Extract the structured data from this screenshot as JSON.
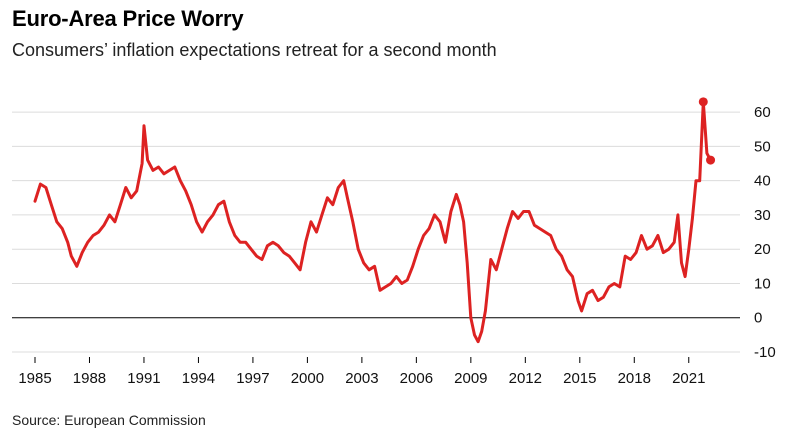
{
  "title": "Euro-Area Price Worry",
  "subtitle": "Consumers’ inflation expectations retreat for a second month",
  "source": "Source: European Commission",
  "colors": {
    "line": "#dd2222",
    "grid": "#dcdcdc",
    "zero": "#000000"
  },
  "chart_data": {
    "type": "line",
    "title": "Euro-Area Price Worry",
    "subtitle": "Consumers’ inflation expectations retreat for a second month",
    "xlabel": "",
    "ylabel": "",
    "xlim": [
      1985,
      2022.5
    ],
    "ylim": [
      -10,
      65
    ],
    "y_ticks": [
      -10,
      0,
      10,
      20,
      30,
      40,
      50,
      60
    ],
    "x_ticks": [
      1985,
      1988,
      1991,
      1994,
      1997,
      2000,
      2003,
      2006,
      2009,
      2012,
      2015,
      2018,
      2021
    ],
    "y_axis_position": "right",
    "grid": true,
    "series": [
      {
        "values_x": [
          1985.0,
          1985.3,
          1985.6,
          1985.9,
          1986.2,
          1986.5,
          1986.8,
          1987.0,
          1987.3,
          1987.6,
          1987.9,
          1988.2,
          1988.5,
          1988.8,
          1989.1,
          1989.4,
          1989.7,
          1990.0,
          1990.3,
          1990.6,
          1990.9,
          1991.0,
          1991.2,
          1991.5,
          1991.8,
          1992.1,
          1992.4,
          1992.7,
          1993.0,
          1993.3,
          1993.6,
          1993.9,
          1994.2,
          1994.5,
          1994.8,
          1995.1,
          1995.4,
          1995.7,
          1996.0,
          1996.3,
          1996.6,
          1996.9,
          1997.2,
          1997.5,
          1997.8,
          1998.1,
          1998.4,
          1998.7,
          1999.0,
          1999.3,
          1999.6,
          1999.9,
          2000.2,
          2000.5,
          2000.8,
          2001.1,
          2001.4,
          2001.7,
          2002.0,
          2002.2,
          2002.5,
          2002.8,
          2003.1,
          2003.4,
          2003.7,
          2004.0,
          2004.3,
          2004.6,
          2004.9,
          2005.2,
          2005.5,
          2005.8,
          2006.1,
          2006.4,
          2006.7,
          2007.0,
          2007.3,
          2007.6,
          2007.9,
          2008.2,
          2008.4,
          2008.6,
          2008.8,
          2009.0,
          2009.2,
          2009.4,
          2009.6,
          2009.8,
          2010.1,
          2010.4,
          2010.7,
          2011.0,
          2011.3,
          2011.6,
          2011.9,
          2012.2,
          2012.5,
          2012.8,
          2013.1,
          2013.4,
          2013.7,
          2014.0,
          2014.3,
          2014.6,
          2014.9,
          2015.1,
          2015.4,
          2015.7,
          2016.0,
          2016.3,
          2016.6,
          2016.9,
          2017.2,
          2017.5,
          2017.8,
          2018.1,
          2018.4,
          2018.7,
          2019.0,
          2019.3,
          2019.6,
          2019.9,
          2020.2,
          2020.4,
          2020.6,
          2020.8,
          2021.0,
          2021.2,
          2021.4,
          2021.6,
          2021.8,
          2022.0,
          2022.2
        ],
        "values": [
          34,
          39,
          38,
          33,
          28,
          26,
          22,
          18,
          15,
          19,
          22,
          24,
          25,
          27,
          30,
          28,
          33,
          38,
          35,
          37,
          45,
          56,
          46,
          43,
          44,
          42,
          43,
          44,
          40,
          37,
          33,
          28,
          25,
          28,
          30,
          33,
          34,
          28,
          24,
          22,
          22,
          20,
          18,
          17,
          21,
          22,
          21,
          19,
          18,
          16,
          14,
          22,
          28,
          25,
          30,
          35,
          33,
          38,
          40,
          35,
          28,
          20,
          16,
          14,
          15,
          8,
          9,
          10,
          12,
          10,
          11,
          15,
          20,
          24,
          26,
          30,
          28,
          22,
          31,
          36,
          33,
          28,
          16,
          0,
          -5,
          -7,
          -4,
          2,
          17,
          14,
          20,
          26,
          31,
          29,
          31,
          31,
          27,
          26,
          25,
          24,
          20,
          18,
          14,
          12,
          5,
          2,
          7,
          8,
          5,
          6,
          9,
          10,
          9,
          18,
          17,
          19,
          24,
          20,
          21,
          24,
          19,
          20,
          22,
          30,
          16,
          12,
          20,
          29,
          40,
          40,
          63,
          48,
          46
        ]
      }
    ],
    "endpoint_markers": [
      {
        "x": 2021.8,
        "y": 63
      },
      {
        "x": 2022.2,
        "y": 46
      }
    ]
  },
  "x_tick_labels": [
    "1985",
    "1988",
    "1991",
    "1994",
    "1997",
    "2000",
    "2003",
    "2006",
    "2009",
    "2012",
    "2015",
    "2018",
    "2021"
  ],
  "y_tick_labels": [
    "60",
    "50",
    "40",
    "30",
    "20",
    "10",
    "0",
    "-10"
  ]
}
